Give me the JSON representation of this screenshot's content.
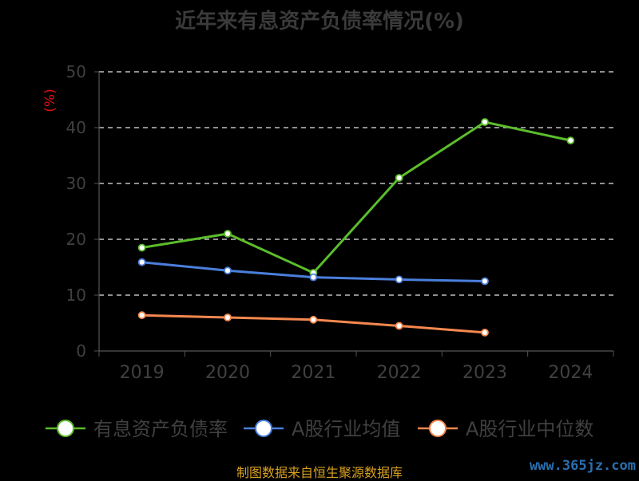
{
  "chart_data": {
    "type": "line",
    "title": "近年来有息资产负债率情况(%)",
    "ylabel": "(%)",
    "categories": [
      "2019",
      "2020",
      "2021",
      "2022",
      "2023",
      "2024"
    ],
    "ylim": [
      0,
      50
    ],
    "yticks": [
      0,
      10,
      20,
      30,
      40,
      50
    ],
    "grid": true,
    "legend_position": "bottom",
    "series": [
      {
        "name": "有息资产负债率",
        "color": "#5bbd2b",
        "values": [
          18.5,
          21.0,
          14.0,
          31.0,
          41.0,
          37.7
        ]
      },
      {
        "name": "A股行业均值",
        "color": "#4a7fdc",
        "values": [
          15.9,
          14.4,
          13.2,
          12.8,
          12.5,
          null
        ]
      },
      {
        "name": "A股行业中位数",
        "color": "#f5884f",
        "values": [
          6.4,
          6.0,
          5.6,
          4.5,
          3.3,
          null
        ]
      }
    ]
  },
  "footer": {
    "source": "制图数据来自恒生聚源数据库",
    "watermark": "www.365jz.com"
  }
}
